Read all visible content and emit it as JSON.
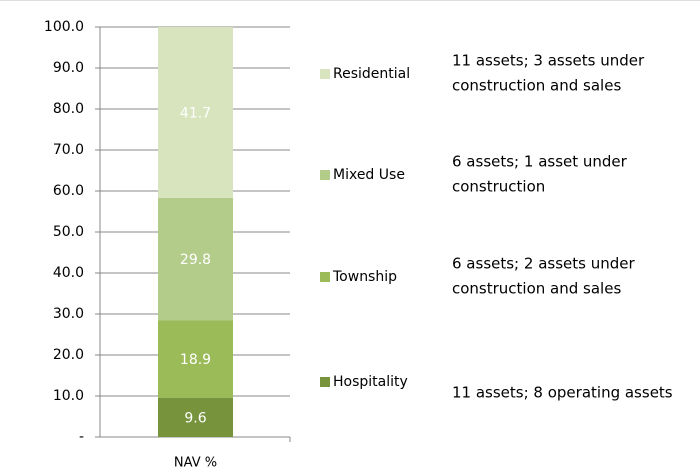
{
  "chart_data": {
    "type": "stacked_bar",
    "categories": [
      "NAV %"
    ],
    "series": [
      {
        "name": "Hospitality",
        "color": "#77933c",
        "values": [
          9.6
        ],
        "note": [
          "11 assets; 8 operating assets"
        ]
      },
      {
        "name": "Township",
        "color": "#9bbb59",
        "values": [
          18.9
        ],
        "note": [
          "6 assets; 2 assets under",
          "construction and sales"
        ]
      },
      {
        "name": "Mixed Use",
        "color": "#b3cc8a",
        "values": [
          29.8
        ],
        "note": [
          "6 assets; 1 asset under",
          "construction"
        ]
      },
      {
        "name": "Residential",
        "color": "#d7e4bd",
        "values": [
          41.7
        ],
        "note": [
          "11 assets; 3 assets under",
          "construction and sales"
        ]
      }
    ],
    "ylim": [
      0,
      100
    ],
    "yticks": [
      {
        "value": 0,
        "label": "-"
      },
      {
        "value": 10,
        "label": "10.0"
      },
      {
        "value": 20,
        "label": "20.0"
      },
      {
        "value": 30,
        "label": "30.0"
      },
      {
        "value": 40,
        "label": "40.0"
      },
      {
        "value": 50,
        "label": "50.0"
      },
      {
        "value": 60,
        "label": "60.0"
      },
      {
        "value": 70,
        "label": "70.0"
      },
      {
        "value": 80,
        "label": "80.0"
      },
      {
        "value": 90,
        "label": "90.0"
      },
      {
        "value": 100,
        "label": "100.0"
      }
    ],
    "grid": true
  }
}
